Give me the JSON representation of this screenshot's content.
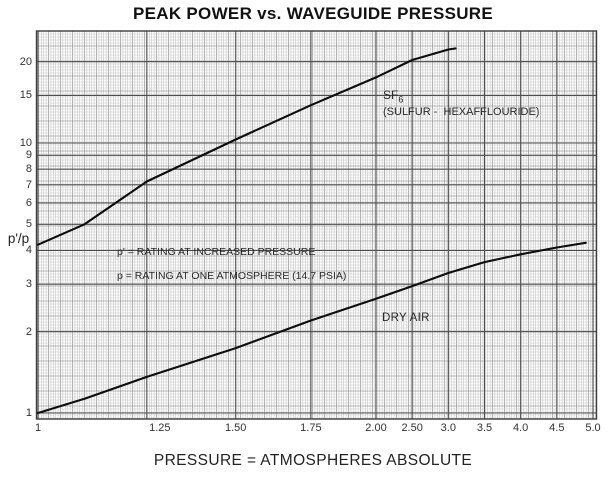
{
  "title": "PEAK POWER vs. WAVEGUIDE PRESSURE",
  "x_axis_title": "PRESSURE = ATMOSPHERES ABSOLUTE",
  "y_axis_label": "p'/p",
  "annotations": {
    "sf6_name": "SF",
    "sf6_sub": "6",
    "sf6_desc": "(SULFUR -  HEXAFFLOURIDE)",
    "note_line1": "p' = RATING AT INCREASED PRESSURE",
    "note_line2": "p = RATING AT ONE ATMOSPHERE (14.7 PSIA)",
    "dry_air": "DRY AIR"
  },
  "chart_data": {
    "type": "line",
    "title": "PEAK POWER vs. WAVEGUIDE PRESSURE",
    "xlabel": "PRESSURE = ATMOSPHERES ABSOLUTE",
    "ylabel": "p'/p  (p' = rating at increased pressure, p = rating at one atmosphere, 14.7 PSIA)",
    "x_scale": "logarithmic from 1 to 2, linear from 2 to 5 (as printed on the graph paper)",
    "y_scale": "logarithmic",
    "xlim": [
      1,
      5
    ],
    "ylim": [
      1,
      26
    ],
    "grid": "fine graph-paper grid, on",
    "legend_position": "labels next to curves",
    "x_ticks": [
      "1",
      "1.25",
      "1.50",
      "1.75",
      "2.00",
      "2.50",
      "3.0",
      "3.5",
      "4.0",
      "4.5",
      "5.0"
    ],
    "y_ticks": [
      "1",
      "2",
      "3",
      "4",
      "5",
      "6",
      "7",
      "8",
      "9",
      "10",
      "15",
      "20"
    ],
    "series": [
      {
        "name": "SF6 (SULFUR - HEXAFFLOURIDE)",
        "points": [
          [
            1.0,
            4.2
          ],
          [
            1.1,
            5.0
          ],
          [
            1.25,
            7.2
          ],
          [
            1.5,
            10.3
          ],
          [
            1.75,
            13.8
          ],
          [
            2.0,
            17.5
          ],
          [
            2.5,
            20.3
          ],
          [
            3.0,
            22.2
          ],
          [
            3.1,
            22.4
          ]
        ]
      },
      {
        "name": "DRY AIR",
        "points": [
          [
            1.0,
            1.0
          ],
          [
            1.1,
            1.13
          ],
          [
            1.25,
            1.36
          ],
          [
            1.5,
            1.74
          ],
          [
            1.75,
            2.2
          ],
          [
            2.0,
            2.65
          ],
          [
            2.5,
            2.95
          ],
          [
            3.0,
            3.3
          ],
          [
            3.5,
            3.62
          ],
          [
            4.0,
            3.87
          ],
          [
            4.5,
            4.1
          ],
          [
            4.9,
            4.27
          ]
        ]
      }
    ]
  }
}
